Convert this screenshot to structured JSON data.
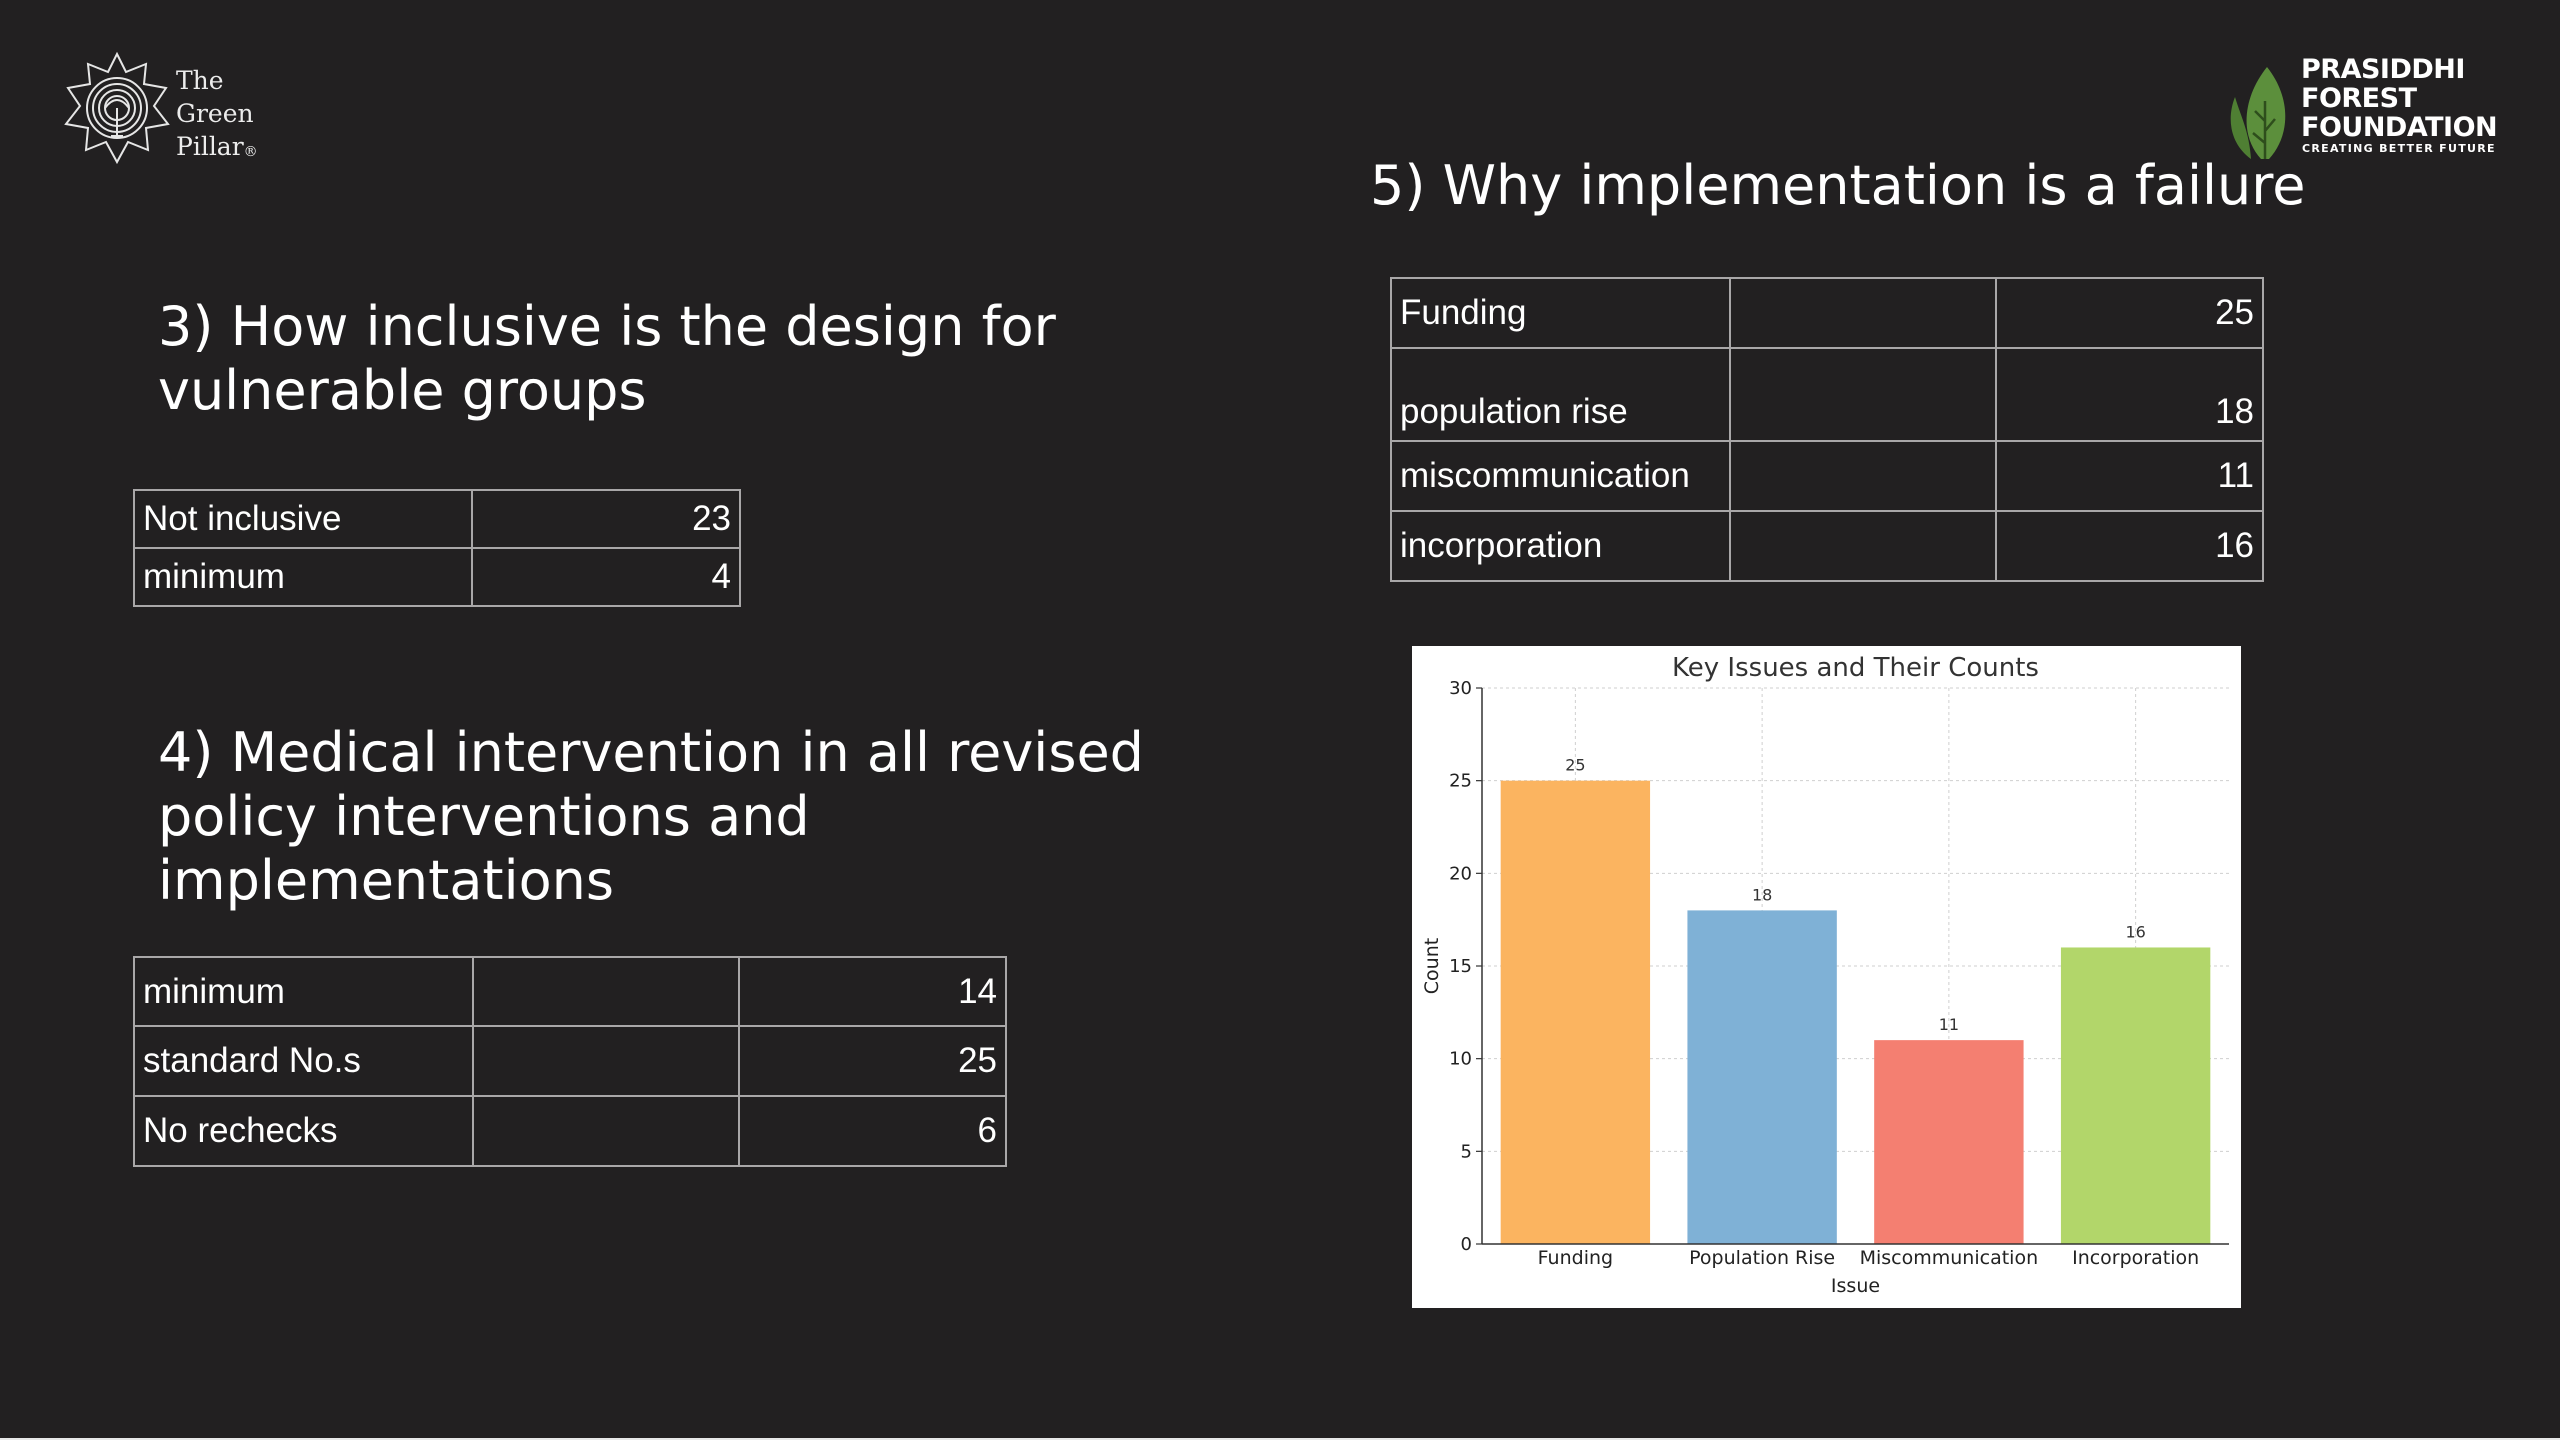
{
  "logos": {
    "green_pillar": {
      "line1": "The",
      "line2": "Green",
      "line3": "Pillar",
      "reg": "®"
    },
    "prasiddhi": {
      "line1": "PRASIDDHI",
      "line2": "FOREST",
      "line3": "FOUNDATION",
      "tagline": "CREATING BETTER FUTURE",
      "leaf_color": "#5c8f3c"
    }
  },
  "section3": {
    "heading_line1": "3) How inclusive is the design for",
    "heading_line2": "vulnerable groups",
    "rows": [
      {
        "label": "Not inclusive",
        "value": "23"
      },
      {
        "label": "minimum",
        "value": "4"
      }
    ]
  },
  "section4": {
    "heading_line1": "4) Medical intervention in all revised",
    "heading_line2": "policy interventions and",
    "heading_line3": "implementations",
    "rows": [
      {
        "label": "minimum",
        "value": "14"
      },
      {
        "label": "standard No.s",
        "value": "25"
      },
      {
        "label": "No rechecks",
        "value": "6"
      }
    ]
  },
  "section5": {
    "heading": "5) Why implementation is a failure",
    "rows": [
      {
        "label": "Funding",
        "value": "25"
      },
      {
        "label": "population rise",
        "value": "18"
      },
      {
        "label": "miscommunication",
        "value": "11"
      },
      {
        "label": "incorporation",
        "value": "16"
      }
    ]
  },
  "chart_data": {
    "type": "bar",
    "title": "Key Issues and Their Counts",
    "xlabel": "Issue",
    "ylabel": "Count",
    "categories": [
      "Funding",
      "Population Rise",
      "Miscommunication",
      "Incorporation"
    ],
    "values": [
      25,
      18,
      11,
      16
    ],
    "colors": [
      "#fbb460",
      "#7fb1d6",
      "#f47f71",
      "#b2d66a"
    ],
    "ylim": [
      0,
      30
    ],
    "yticks": [
      0,
      5,
      10,
      15,
      20,
      25,
      30
    ],
    "grid": true,
    "data_labels": true,
    "background": "#ffffff"
  }
}
